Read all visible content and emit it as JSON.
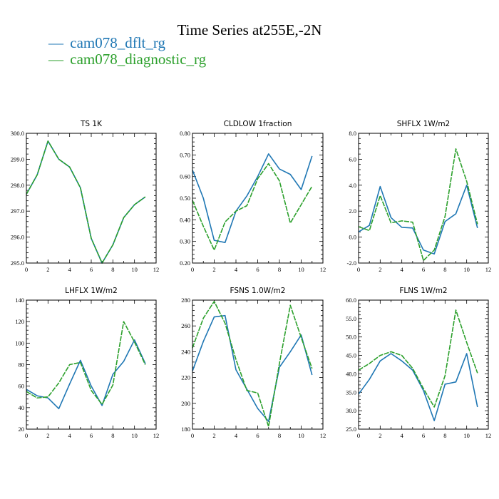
{
  "figure_title": "Time Series at255E,-2N",
  "colors": {
    "s1": "#1f77b4",
    "s2": "#2ca02c"
  },
  "legend": [
    {
      "symbol": "—",
      "label": "cam078_dflt_rg"
    },
    {
      "symbol": "—",
      "label": "cam078_diagnostic_rg"
    }
  ],
  "chart_data": [
    {
      "type": "line",
      "title": "TS   1K",
      "x": [
        0,
        1,
        2,
        3,
        4,
        5,
        6,
        7,
        8,
        9,
        10,
        11
      ],
      "xlim": [
        0,
        12
      ],
      "xticks": [
        "0",
        "2",
        "4",
        "6",
        "8",
        "10",
        "12"
      ],
      "xtick_values": [
        0,
        2,
        4,
        6,
        8,
        10,
        12
      ],
      "ylim": [
        295.0,
        300.0
      ],
      "ytick_values": [
        295.0,
        296.0,
        297.0,
        298.0,
        299.0,
        300.0
      ],
      "yticks": [
        "295.0",
        "296.0",
        "297.0",
        "298.0",
        "299.0",
        "300.0"
      ],
      "series": [
        {
          "name": "cam078_dflt_rg",
          "values": [
            297.65,
            298.4,
            299.7,
            299.0,
            298.7,
            297.9,
            295.95,
            295.0,
            295.7,
            296.75,
            297.25,
            297.55
          ]
        },
        {
          "name": "cam078_diagnostic_rg",
          "values": [
            297.65,
            298.4,
            299.7,
            299.0,
            298.7,
            297.9,
            295.95,
            295.0,
            295.7,
            296.75,
            297.25,
            297.55
          ]
        }
      ]
    },
    {
      "type": "line",
      "title": "CLDLOW   1fraction",
      "x": [
        0,
        1,
        2,
        3,
        4,
        5,
        6,
        7,
        8,
        9,
        10,
        11
      ],
      "xlim": [
        0,
        12
      ],
      "xticks": [
        "0",
        "2",
        "4",
        "6",
        "8",
        "10",
        "12"
      ],
      "xtick_values": [
        0,
        2,
        4,
        6,
        8,
        10,
        12
      ],
      "ylim": [
        0.2,
        0.8
      ],
      "ytick_values": [
        0.2,
        0.3,
        0.4,
        0.5,
        0.6,
        0.7,
        0.8
      ],
      "yticks": [
        "0.20",
        "0.30",
        "0.40",
        "0.50",
        "0.60",
        "0.70",
        "0.80"
      ],
      "series": [
        {
          "name": "cam078_dflt_rg",
          "values": [
            0.63,
            0.5,
            0.305,
            0.295,
            0.44,
            0.51,
            0.6,
            0.705,
            0.635,
            0.61,
            0.54,
            0.695
          ]
        },
        {
          "name": "cam078_diagnostic_rg",
          "values": [
            0.49,
            0.37,
            0.26,
            0.39,
            0.44,
            0.465,
            0.59,
            0.66,
            0.58,
            0.385,
            0.47,
            0.555
          ]
        }
      ]
    },
    {
      "type": "line",
      "title": "SHFLX   1W/m2",
      "x": [
        0,
        1,
        2,
        3,
        4,
        5,
        6,
        7,
        8,
        9,
        10,
        11
      ],
      "xlim": [
        0,
        12
      ],
      "xticks": [
        "0",
        "2",
        "4",
        "6",
        "8",
        "10",
        "12"
      ],
      "xtick_values": [
        0,
        2,
        4,
        6,
        8,
        10,
        12
      ],
      "ylim": [
        -2.0,
        8.0
      ],
      "ytick_values": [
        -2,
        0,
        2,
        4,
        6,
        8
      ],
      "yticks": [
        "-2.0",
        "0.0",
        "2.0",
        "4.0",
        "6.0",
        "8.0"
      ],
      "series": [
        {
          "name": "cam078_dflt_rg",
          "values": [
            0.4,
            0.9,
            3.9,
            1.5,
            0.75,
            0.7,
            -1.0,
            -1.3,
            1.2,
            1.8,
            4.0,
            0.7
          ]
        },
        {
          "name": "cam078_diagnostic_rg",
          "values": [
            0.8,
            0.5,
            3.2,
            1.1,
            1.25,
            1.15,
            -1.8,
            -1.0,
            1.6,
            6.8,
            4.3,
            1.0
          ]
        }
      ]
    },
    {
      "type": "line",
      "title": "LHFLX   1W/m2",
      "x": [
        0,
        1,
        2,
        3,
        4,
        5,
        6,
        7,
        8,
        9,
        10,
        11
      ],
      "xlim": [
        0,
        12
      ],
      "xticks": [
        "0",
        "2",
        "4",
        "6",
        "8",
        "10",
        "12"
      ],
      "xtick_values": [
        0,
        2,
        4,
        6,
        8,
        10,
        12
      ],
      "ylim": [
        20,
        140
      ],
      "ytick_values": [
        20,
        40,
        60,
        80,
        100,
        120,
        140
      ],
      "yticks": [
        "20",
        "40",
        "60",
        "80",
        "100",
        "120",
        "140"
      ],
      "series": [
        {
          "name": "cam078_dflt_rg",
          "values": [
            57,
            51,
            49,
            39,
            62,
            84,
            60,
            42,
            71,
            83,
            103,
            81
          ]
        },
        {
          "name": "cam078_diagnostic_rg",
          "values": [
            55,
            49,
            50,
            63,
            80,
            82,
            56,
            43,
            61,
            120,
            101,
            80
          ]
        }
      ]
    },
    {
      "type": "line",
      "title": "FSNS   1.0W/m2",
      "x": [
        0,
        1,
        2,
        3,
        4,
        5,
        6,
        7,
        8,
        9,
        10,
        11
      ],
      "xlim": [
        0,
        12
      ],
      "xticks": [
        "0",
        "2",
        "4",
        "6",
        "8",
        "10",
        "12"
      ],
      "xtick_values": [
        0,
        2,
        4,
        6,
        8,
        10,
        12
      ],
      "ylim": [
        180,
        280
      ],
      "ytick_values": [
        180,
        200,
        220,
        240,
        260,
        280
      ],
      "yticks": [
        "180",
        "200",
        "220",
        "240",
        "260",
        "280"
      ],
      "series": [
        {
          "name": "cam078_dflt_rg",
          "values": [
            225,
            248,
            267,
            268,
            226,
            211,
            196,
            186,
            228,
            240,
            253,
            222
          ]
        },
        {
          "name": "cam078_diagnostic_rg",
          "values": [
            243,
            266,
            279,
            262,
            234,
            210,
            208,
            182,
            231,
            276,
            251,
            227
          ]
        }
      ]
    },
    {
      "type": "line",
      "title": "FLNS   1W/m2",
      "x": [
        0,
        1,
        2,
        3,
        4,
        5,
        6,
        7,
        8,
        9,
        10,
        11
      ],
      "xlim": [
        0,
        12
      ],
      "xticks": [
        "0",
        "2",
        "4",
        "6",
        "8",
        "10",
        "12"
      ],
      "xtick_values": [
        0,
        2,
        4,
        6,
        8,
        10,
        12
      ],
      "ylim": [
        25.0,
        60.0
      ],
      "ytick_values": [
        25,
        30,
        35,
        40,
        45,
        50,
        55,
        60
      ],
      "yticks": [
        "25.0",
        "30.0",
        "35.0",
        "40.0",
        "45.0",
        "50.0",
        "55.0",
        "60.0"
      ],
      "series": [
        {
          "name": "cam078_dflt_rg",
          "values": [
            34.5,
            38.5,
            43.5,
            45.5,
            43.5,
            41.0,
            35.5,
            27.3,
            37.2,
            37.8,
            45.5,
            31.0
          ]
        },
        {
          "name": "cam078_diagnostic_rg",
          "values": [
            41.0,
            42.8,
            45.0,
            46.0,
            45.0,
            41.5,
            36.0,
            31.0,
            39.5,
            57.3,
            48.5,
            40.2
          ]
        }
      ]
    }
  ]
}
